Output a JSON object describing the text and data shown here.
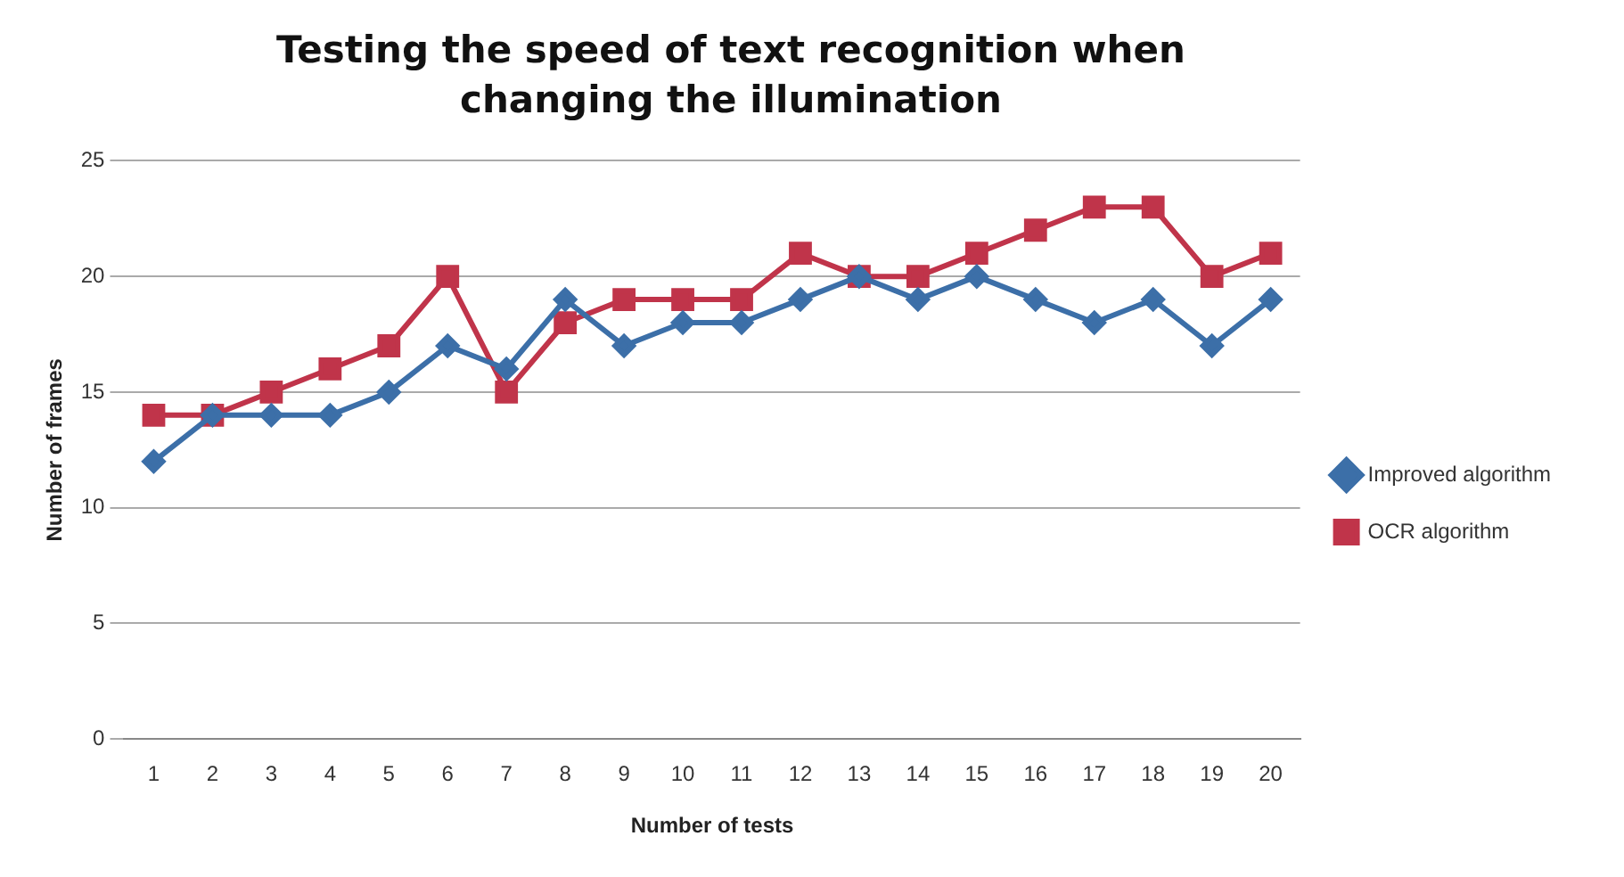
{
  "chart_data": {
    "type": "line",
    "title": "Testing the speed of text recognition when changing the illumination",
    "xlabel": "Number of tests",
    "ylabel": "Number of frames",
    "categories": [
      "1",
      "2",
      "3",
      "4",
      "5",
      "6",
      "7",
      "8",
      "9",
      "10",
      "11",
      "12",
      "13",
      "14",
      "15",
      "16",
      "17",
      "18",
      "19",
      "20"
    ],
    "series": [
      {
        "name": "Improved algorithm",
        "color": "#3c6fa8",
        "marker": "diamond",
        "values": [
          12,
          14,
          14,
          14,
          15,
          17,
          16,
          19,
          17,
          18,
          18,
          19,
          20,
          19,
          20,
          19,
          18,
          19,
          17,
          19
        ]
      },
      {
        "name": "OCR algorithm",
        "color": "#c0344a",
        "marker": "square",
        "values": [
          14,
          14,
          15,
          16,
          17,
          20,
          15,
          18,
          19,
          19,
          19,
          21,
          20,
          20,
          21,
          22,
          23,
          23,
          20,
          21
        ]
      }
    ],
    "ylim": [
      0,
      25
    ],
    "yticks": [
      0,
      5,
      10,
      15,
      20,
      25
    ],
    "grid": "y",
    "legend": "right",
    "line_style": "solid"
  }
}
